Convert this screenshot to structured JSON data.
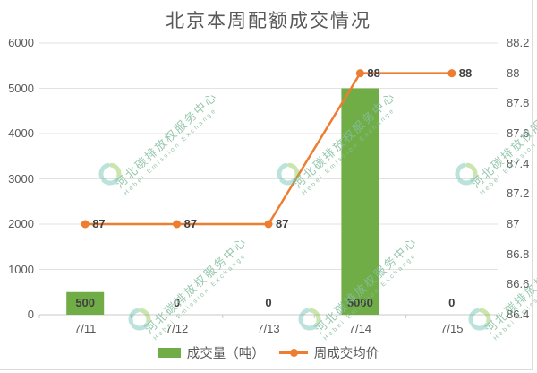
{
  "title": "北京本周配额成交情况",
  "chart_data": {
    "type": "combo",
    "title": "北京本周配额成交情况",
    "categories": [
      "7/11",
      "7/12",
      "7/13",
      "7/14",
      "7/15"
    ],
    "series": [
      {
        "name": "成交量（吨）",
        "type": "bar",
        "axis": "left",
        "color": "#70AD47",
        "values": [
          500,
          0,
          0,
          5000,
          0
        ],
        "labels": [
          "500",
          "0",
          "0",
          "5000",
          "0"
        ]
      },
      {
        "name": "周成交均价",
        "type": "line",
        "axis": "right",
        "color": "#ED7D31",
        "values": [
          87,
          87,
          87,
          88,
          88
        ],
        "labels": [
          "87",
          "87",
          "87",
          "88",
          "88"
        ]
      }
    ],
    "left_axis": {
      "min": 0,
      "max": 6000,
      "step": 1000,
      "tick_labels": [
        "6000",
        "5000",
        "4000",
        "3000",
        "2000",
        "1000",
        "0"
      ]
    },
    "right_axis": {
      "min": 86.4,
      "max": 88.2,
      "step": 0.2,
      "tick_labels": [
        "88.2",
        "88",
        "87.8",
        "87.6",
        "87.4",
        "87.2",
        "87",
        "86.8",
        "86.6",
        "86.4"
      ]
    },
    "grid": true,
    "legend_position": "bottom"
  },
  "watermark": {
    "logo": "recycle-swirl-logo",
    "text_cn": "河北碳排放权服务中心",
    "text_en": "Hebei Emission Exchange",
    "color_text": "#86BFA0",
    "color_logo_teal": "#5FBDAD",
    "color_logo_green": "#82C341"
  },
  "colors": {
    "background": "#FFFFFF",
    "gridline": "#E2E2E2",
    "axis_line": "#C9C9C9",
    "axis_text": "#595959",
    "data_label_text": "#404040",
    "border": "#DCDCDC"
  }
}
